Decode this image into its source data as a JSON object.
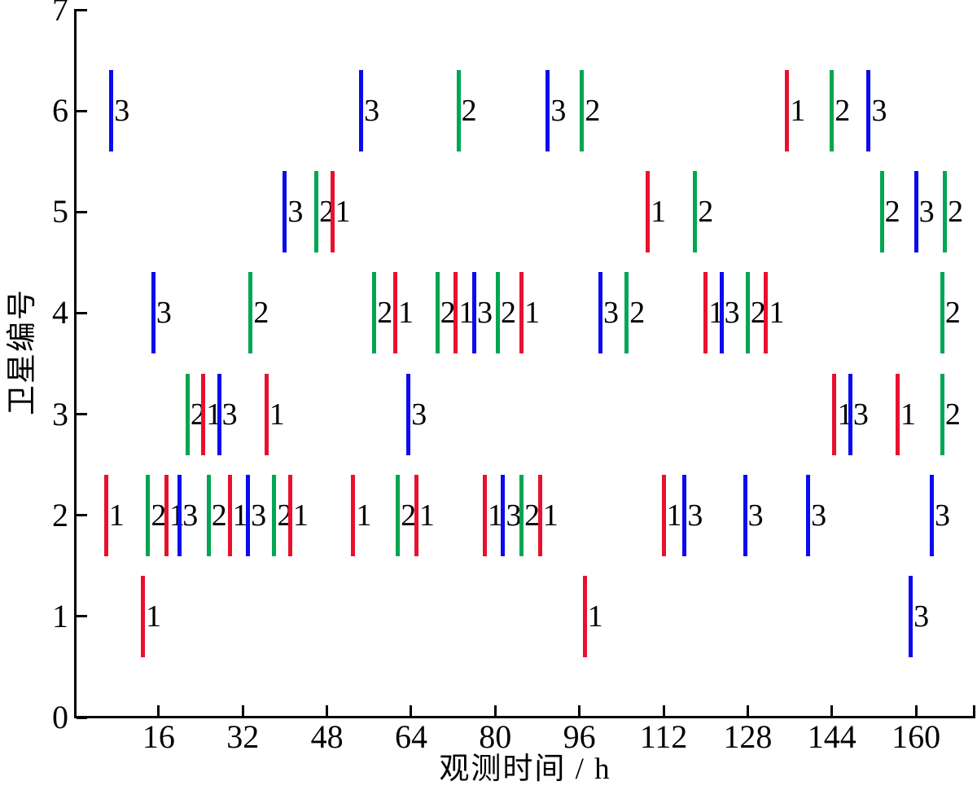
{
  "chart_data": {
    "type": "scatter",
    "subtype": "event-timeline",
    "xlabel": "观测时间 / h",
    "ylabel": "卫星编号",
    "xlim": [
      0,
      171
    ],
    "ylim": [
      0,
      7
    ],
    "x_ticks": [
      16,
      32,
      48,
      64,
      80,
      96,
      112,
      128,
      144,
      160
    ],
    "y_ticks": [
      0,
      1,
      2,
      3,
      4,
      5,
      6,
      7
    ],
    "grid": false,
    "legend": "none",
    "marker_half_height_units": 0.4,
    "station_colors": {
      "1": "#e8112d",
      "2": "#00a651",
      "3": "#0b0bee"
    },
    "axis_color": "#000000",
    "events": [
      {
        "satellite": 1,
        "time": 13,
        "station": 1
      },
      {
        "satellite": 1,
        "time": 97,
        "station": 1
      },
      {
        "satellite": 1,
        "time": 159,
        "station": 3
      },
      {
        "satellite": 2,
        "time": 6,
        "station": 1
      },
      {
        "satellite": 2,
        "time": 14,
        "station": 2
      },
      {
        "satellite": 2,
        "time": 17.5,
        "station": 1
      },
      {
        "satellite": 2,
        "time": 20,
        "station": 3
      },
      {
        "satellite": 2,
        "time": 25.5,
        "station": 2
      },
      {
        "satellite": 2,
        "time": 29.5,
        "station": 1
      },
      {
        "satellite": 2,
        "time": 33,
        "station": 3
      },
      {
        "satellite": 2,
        "time": 38,
        "station": 2
      },
      {
        "satellite": 2,
        "time": 41,
        "station": 1
      },
      {
        "satellite": 2,
        "time": 53,
        "station": 1
      },
      {
        "satellite": 2,
        "time": 61.5,
        "station": 2
      },
      {
        "satellite": 2,
        "time": 65,
        "station": 1
      },
      {
        "satellite": 2,
        "time": 78,
        "station": 1
      },
      {
        "satellite": 2,
        "time": 81.5,
        "station": 3
      },
      {
        "satellite": 2,
        "time": 85,
        "station": 2
      },
      {
        "satellite": 2,
        "time": 88.5,
        "station": 1
      },
      {
        "satellite": 2,
        "time": 112,
        "station": 1
      },
      {
        "satellite": 2,
        "time": 116,
        "station": 3
      },
      {
        "satellite": 2,
        "time": 127.5,
        "station": 3
      },
      {
        "satellite": 2,
        "time": 139.5,
        "station": 3
      },
      {
        "satellite": 2,
        "time": 163,
        "station": 3
      },
      {
        "satellite": 3,
        "time": 21.5,
        "station": 2
      },
      {
        "satellite": 3,
        "time": 24.5,
        "station": 1
      },
      {
        "satellite": 3,
        "time": 27.5,
        "station": 3
      },
      {
        "satellite": 3,
        "time": 36.5,
        "station": 1
      },
      {
        "satellite": 3,
        "time": 63.5,
        "station": 3
      },
      {
        "satellite": 3,
        "time": 144.5,
        "station": 1
      },
      {
        "satellite": 3,
        "time": 147.5,
        "station": 3
      },
      {
        "satellite": 3,
        "time": 156.5,
        "station": 1
      },
      {
        "satellite": 3,
        "time": 165,
        "station": 2
      },
      {
        "satellite": 4,
        "time": 15,
        "station": 3
      },
      {
        "satellite": 4,
        "time": 33.5,
        "station": 2
      },
      {
        "satellite": 4,
        "time": 57,
        "station": 2
      },
      {
        "satellite": 4,
        "time": 61,
        "station": 1
      },
      {
        "satellite": 4,
        "time": 69,
        "station": 2
      },
      {
        "satellite": 4,
        "time": 72.5,
        "station": 1
      },
      {
        "satellite": 4,
        "time": 76,
        "station": 3
      },
      {
        "satellite": 4,
        "time": 80.5,
        "station": 2
      },
      {
        "satellite": 4,
        "time": 85,
        "station": 1
      },
      {
        "satellite": 4,
        "time": 100,
        "station": 3
      },
      {
        "satellite": 4,
        "time": 105,
        "station": 2
      },
      {
        "satellite": 4,
        "time": 120,
        "station": 1
      },
      {
        "satellite": 4,
        "time": 123,
        "station": 3
      },
      {
        "satellite": 4,
        "time": 128,
        "station": 2
      },
      {
        "satellite": 4,
        "time": 131.5,
        "station": 1
      },
      {
        "satellite": 4,
        "time": 165,
        "station": 2
      },
      {
        "satellite": 5,
        "time": 40,
        "station": 3
      },
      {
        "satellite": 5,
        "time": 46,
        "station": 2
      },
      {
        "satellite": 5,
        "time": 49,
        "station": 1
      },
      {
        "satellite": 5,
        "time": 109,
        "station": 1
      },
      {
        "satellite": 5,
        "time": 118,
        "station": 2
      },
      {
        "satellite": 5,
        "time": 153.5,
        "station": 2
      },
      {
        "satellite": 5,
        "time": 160,
        "station": 3
      },
      {
        "satellite": 5,
        "time": 165.5,
        "station": 2
      },
      {
        "satellite": 6,
        "time": 7,
        "station": 3
      },
      {
        "satellite": 6,
        "time": 54.5,
        "station": 3
      },
      {
        "satellite": 6,
        "time": 73,
        "station": 2
      },
      {
        "satellite": 6,
        "time": 90,
        "station": 3
      },
      {
        "satellite": 6,
        "time": 96.5,
        "station": 2
      },
      {
        "satellite": 6,
        "time": 135.5,
        "station": 1
      },
      {
        "satellite": 6,
        "time": 144,
        "station": 2
      },
      {
        "satellite": 6,
        "time": 151,
        "station": 3
      }
    ]
  }
}
